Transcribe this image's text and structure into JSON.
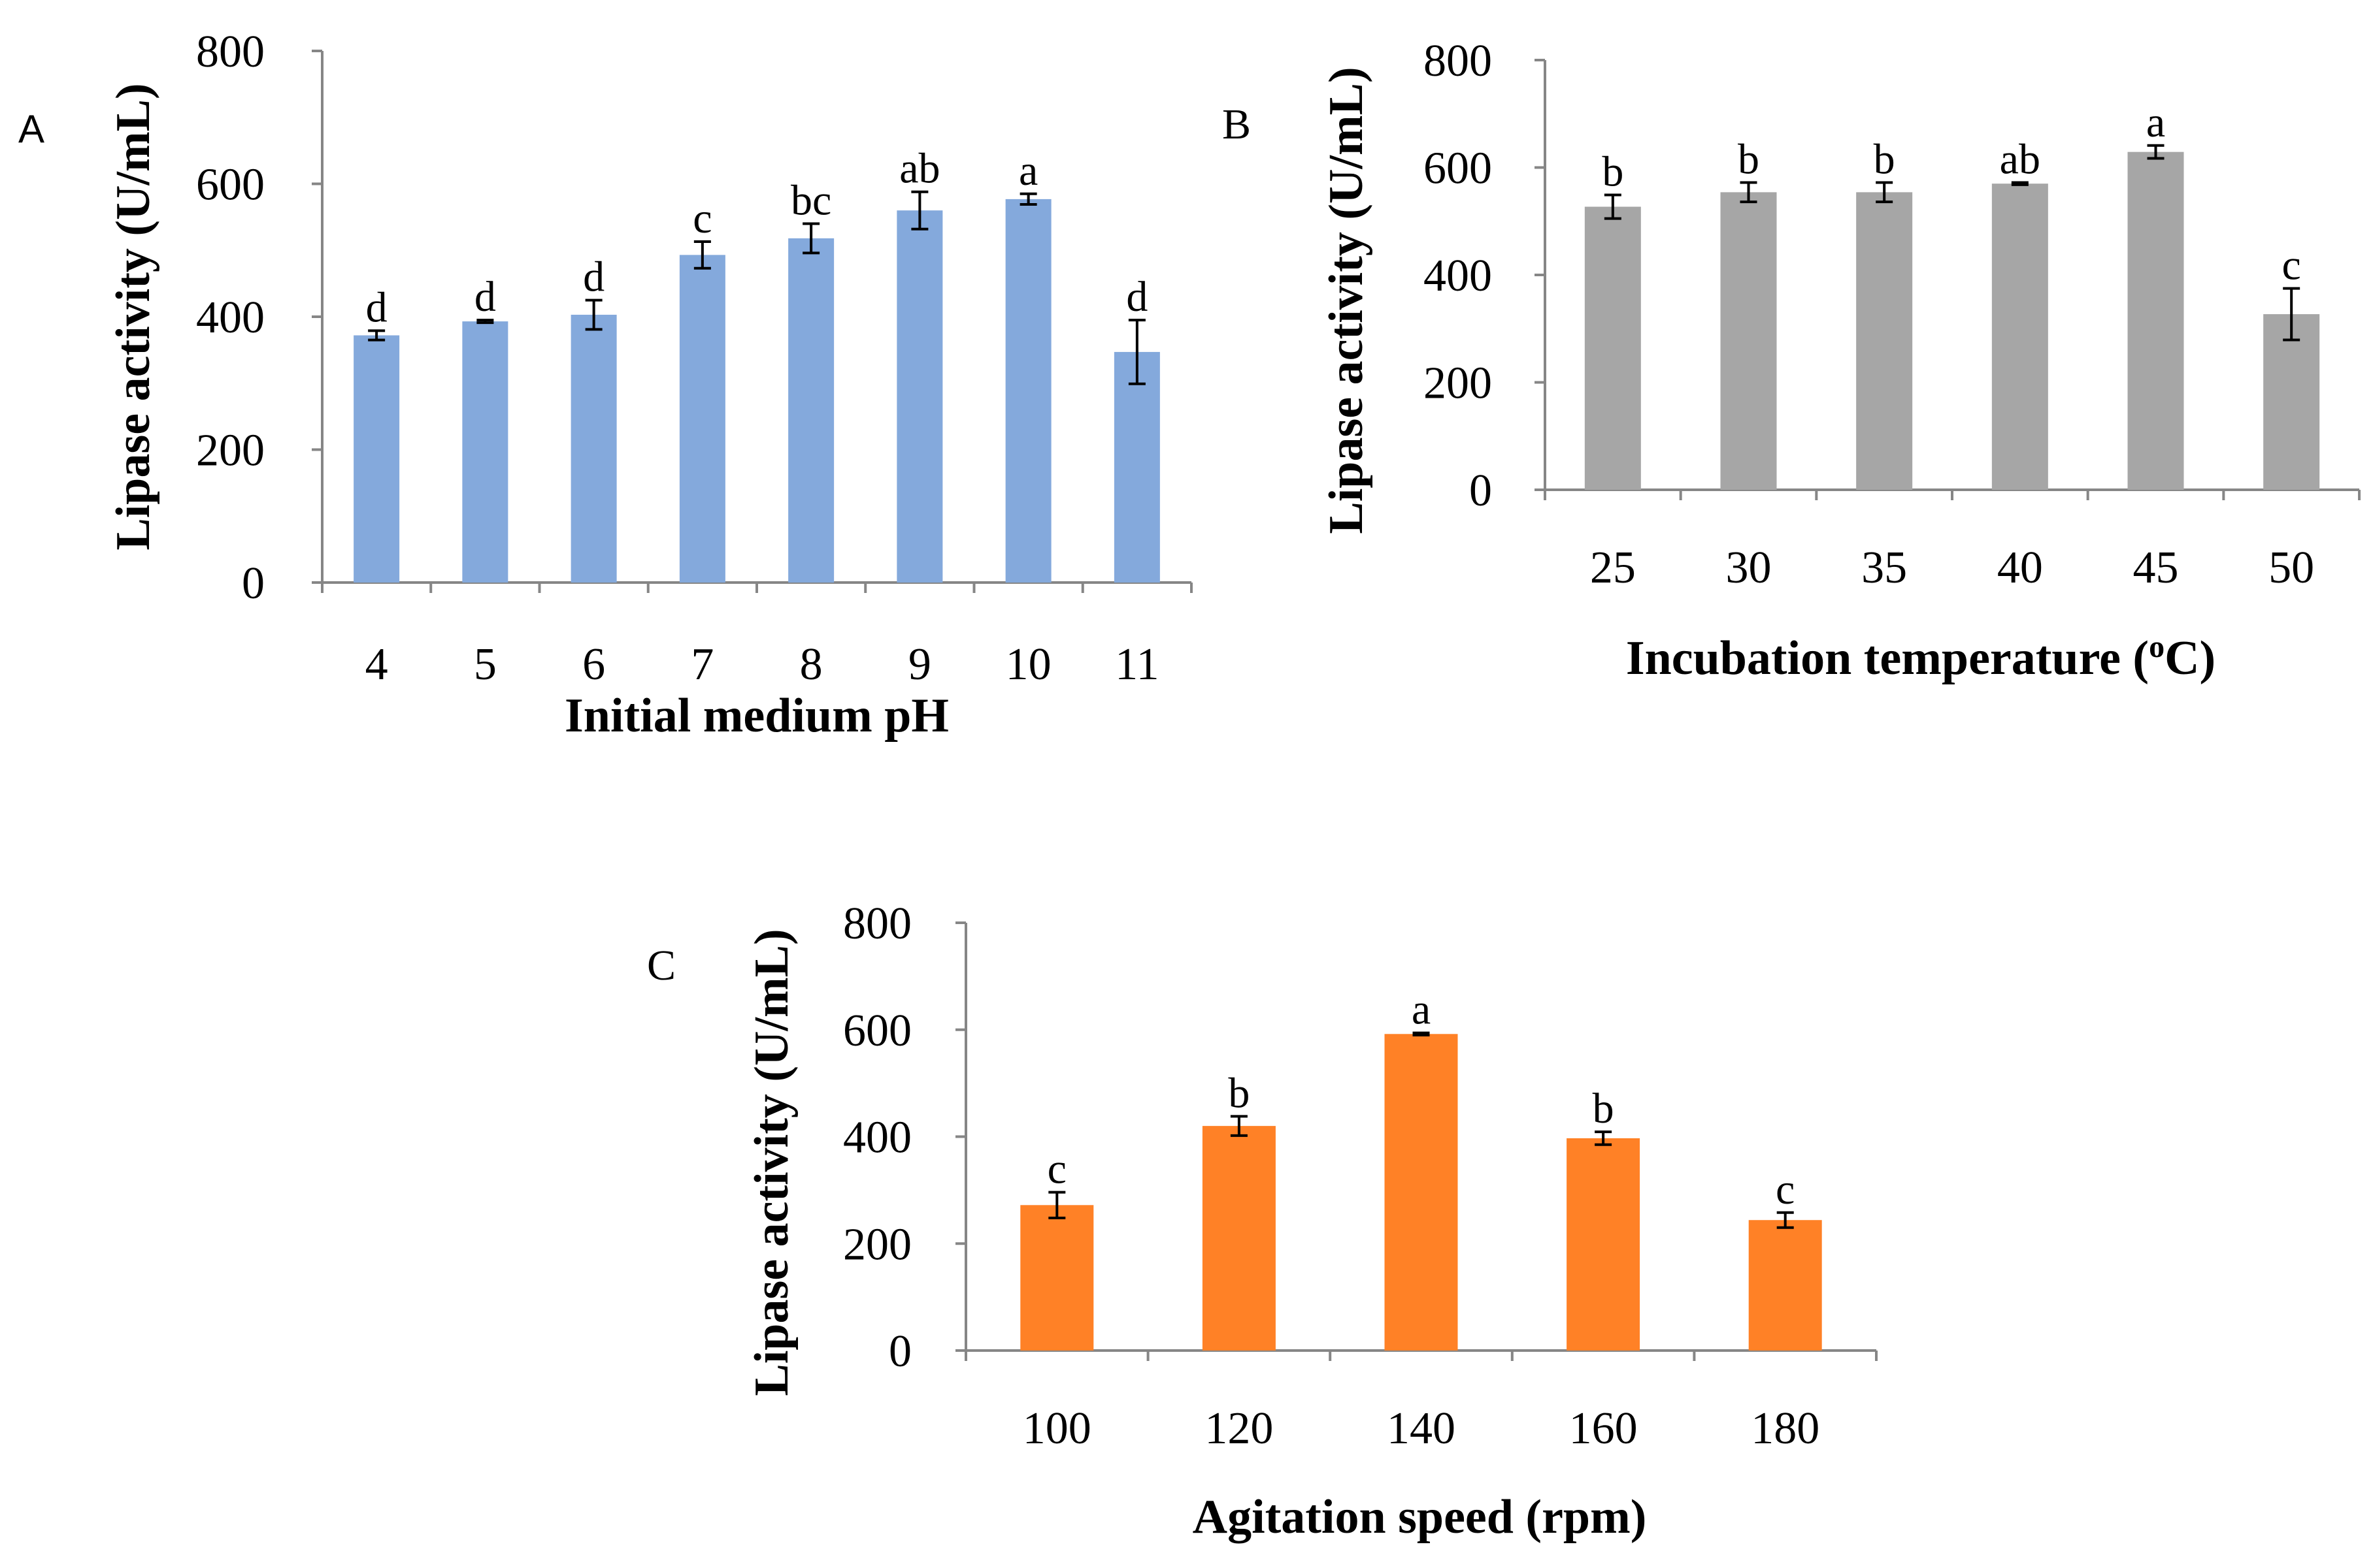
{
  "chart_data": [
    {
      "panel": "A",
      "type": "bar",
      "xlabel": "Initial medium pH",
      "ylabel": "Lipase activity (U/mL)",
      "ylim": [
        0,
        800
      ],
      "yticks": [
        0,
        200,
        400,
        600,
        800
      ],
      "bar_color": "#84A9DC",
      "categories": [
        "4",
        "5",
        "6",
        "7",
        "8",
        "9",
        "10",
        "11"
      ],
      "values": [
        372,
        393,
        403,
        493,
        518,
        560,
        577,
        347
      ],
      "errors": [
        7,
        2,
        22,
        20,
        22,
        28,
        8,
        48
      ],
      "letters": [
        "d",
        "d",
        "d",
        "c",
        "bc",
        "ab",
        "a",
        "d"
      ]
    },
    {
      "panel": "B",
      "type": "bar",
      "xlabel": "Incubation temperature (",
      "xlabel_sup": "o",
      "xlabel_end": "C)",
      "ylabel": "Lipase activity (U/mL)",
      "ylim": [
        0,
        800
      ],
      "yticks": [
        0,
        200,
        400,
        600,
        800
      ],
      "bar_color": "#A6A6A6",
      "categories": [
        "25",
        "30",
        "35",
        "40",
        "45",
        "50"
      ],
      "values": [
        527,
        554,
        554,
        570,
        629,
        327
      ],
      "errors": [
        22,
        18,
        18,
        2,
        12,
        48
      ],
      "letters": [
        "b",
        "b",
        "b",
        "ab",
        "a",
        "c"
      ]
    },
    {
      "panel": "C",
      "type": "bar",
      "xlabel": "Agitation speed (rpm)",
      "ylabel": "Lipase activity (U/mL)",
      "ylim": [
        0,
        800
      ],
      "yticks": [
        0,
        200,
        400,
        600,
        800
      ],
      "bar_color": "#FF8126",
      "categories": [
        "100",
        "120",
        "140",
        "160",
        "180"
      ],
      "values": [
        272,
        420,
        592,
        397,
        244
      ],
      "errors": [
        24,
        18,
        2,
        12,
        14
      ],
      "letters": [
        "c",
        "b",
        "a",
        "b",
        "c"
      ]
    }
  ]
}
